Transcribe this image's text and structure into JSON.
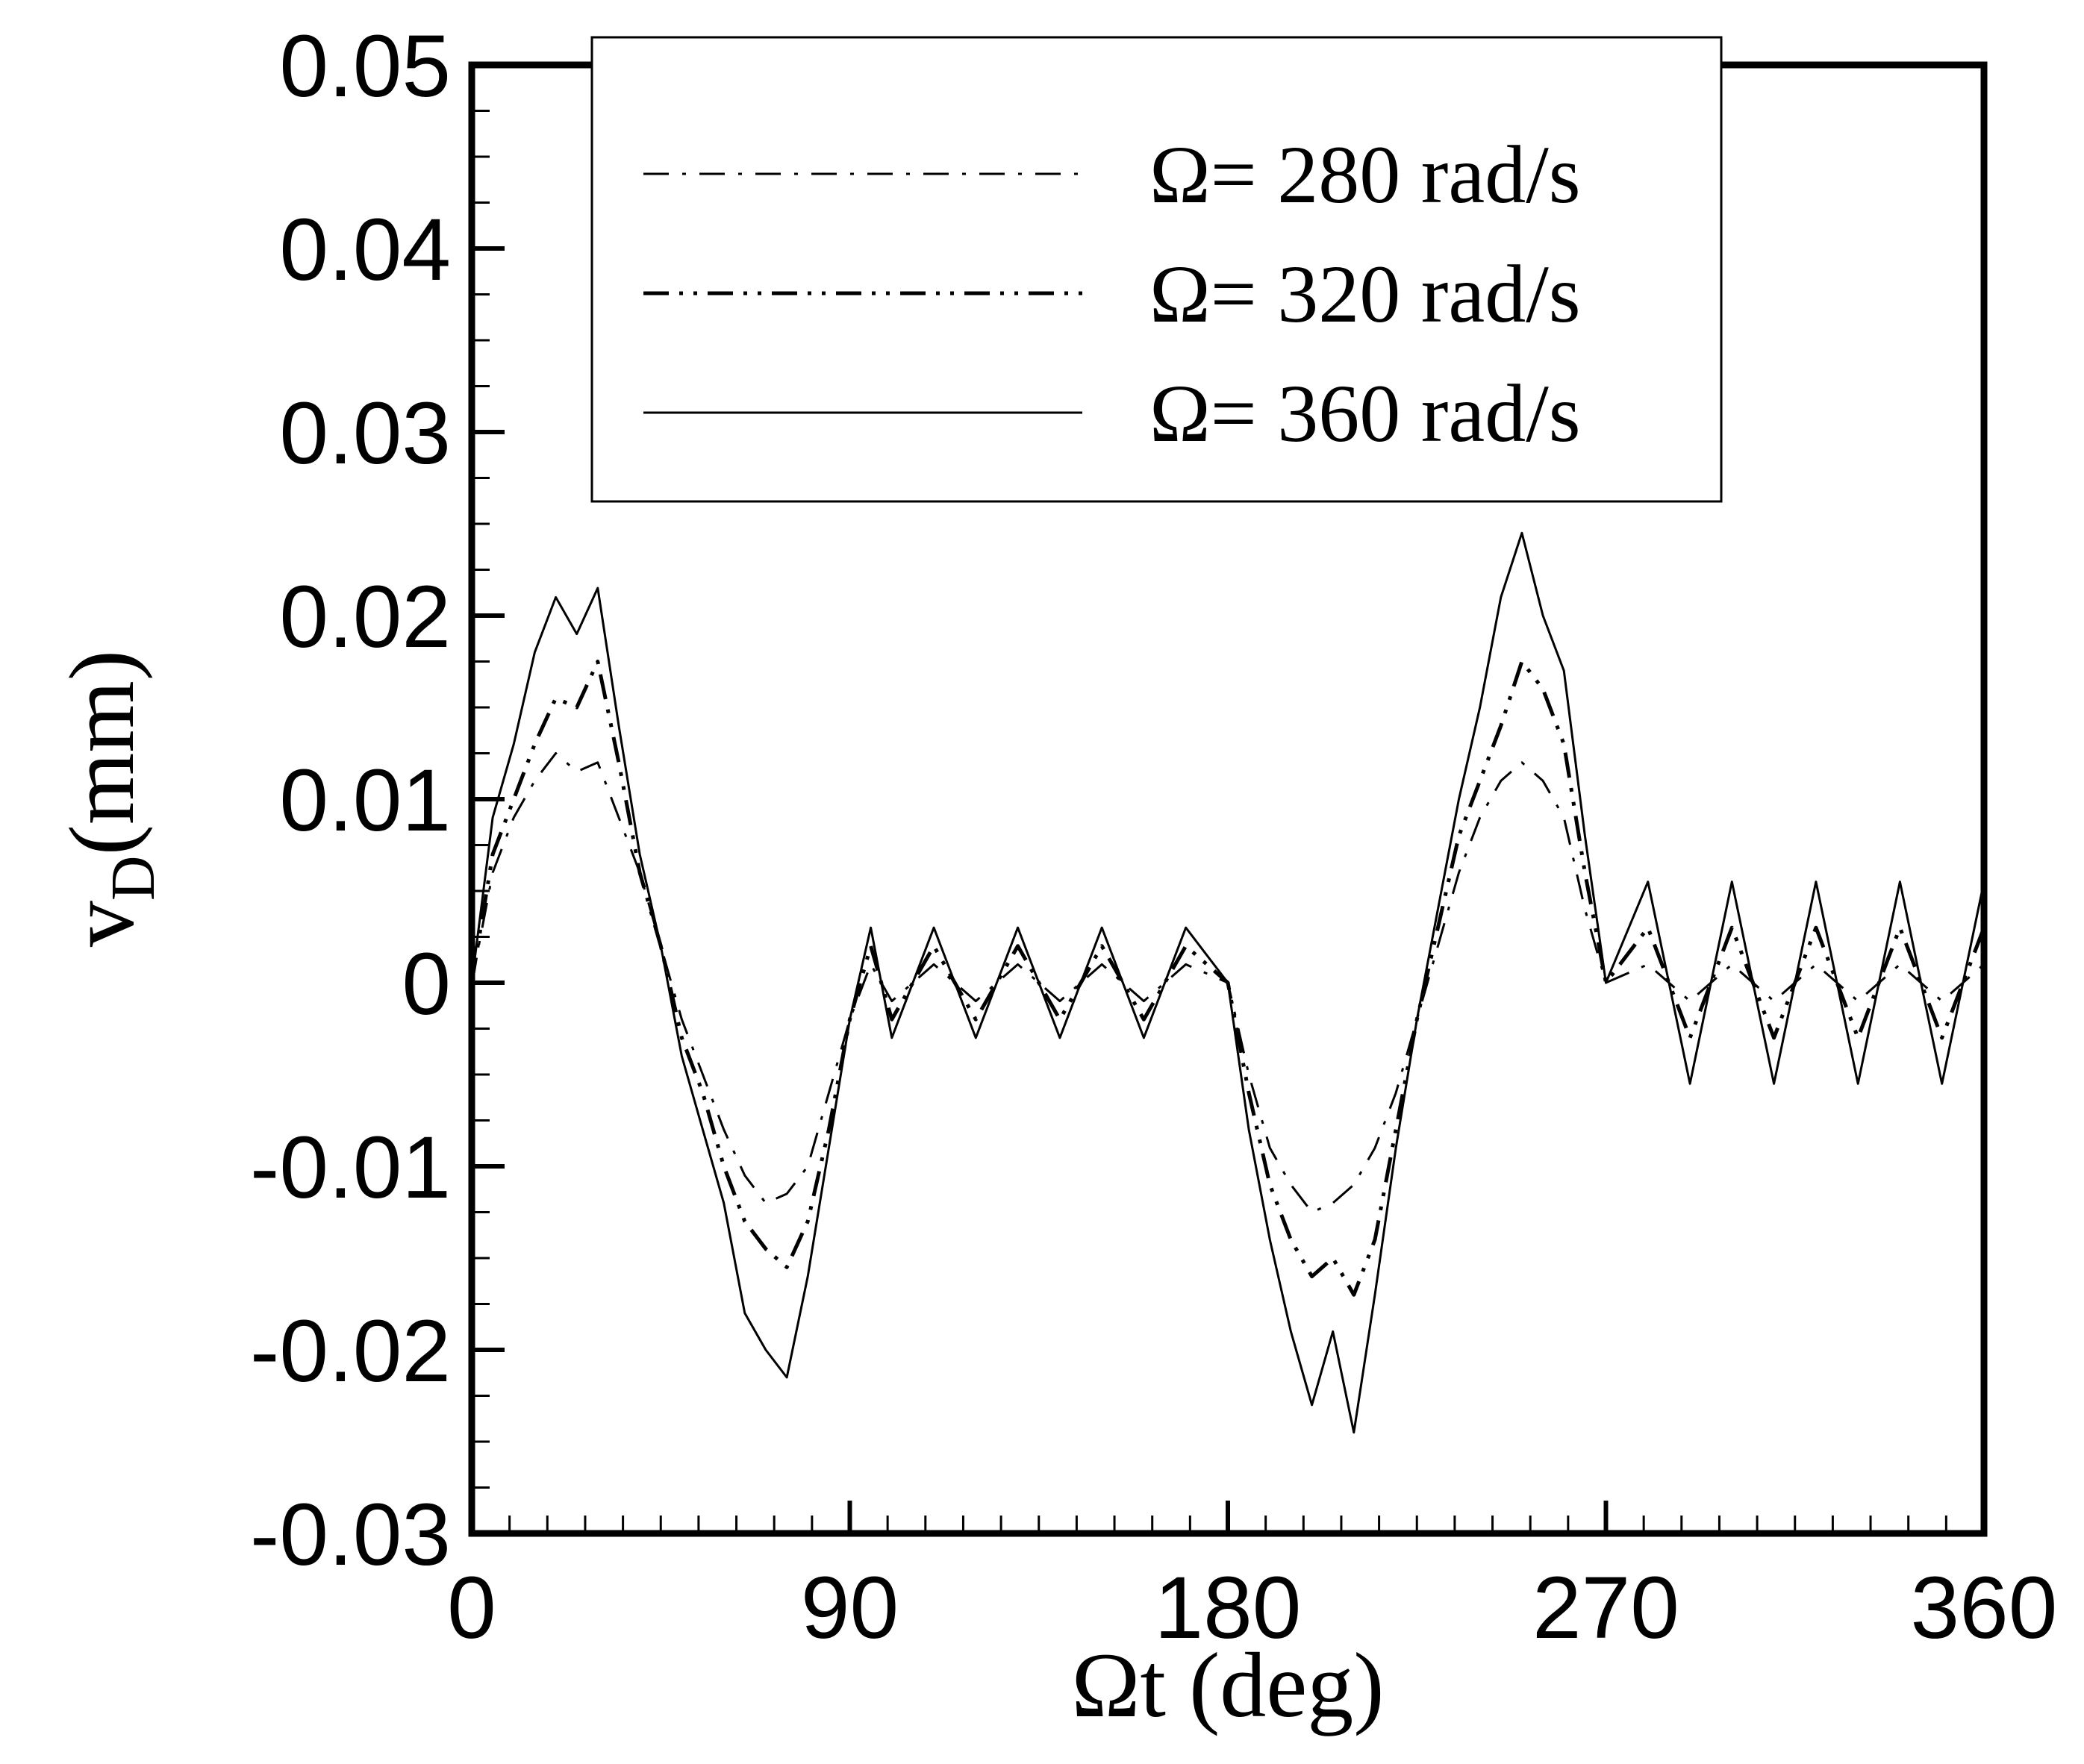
{
  "chart_data": {
    "type": "line",
    "xlabel": "Ωt (deg)",
    "ylabel_main": "v",
    "ylabel_sub": "D",
    "ylabel_unit": "(mm)",
    "xlim": [
      0,
      360
    ],
    "ylim": [
      -0.03,
      0.05
    ],
    "xticks": [
      0,
      90,
      180,
      270,
      360
    ],
    "xtick_labels": [
      "0",
      "90",
      "180",
      "270",
      "360"
    ],
    "yticks": [
      -0.03,
      -0.02,
      -0.01,
      0,
      0.01,
      0.02,
      0.03,
      0.04,
      0.05
    ],
    "ytick_labels": [
      "-0.03",
      "-0.02",
      "-0.01",
      "0",
      "0.01",
      "0.02",
      "0.03",
      "0.04",
      "0.05"
    ],
    "grid": false,
    "legend_position": "top",
    "series": [
      {
        "name": "Ω= 280 rad/s",
        "style": "dash-dot",
        "x": [
          0,
          5,
          10,
          15,
          20,
          25,
          30,
          35,
          40,
          45,
          50,
          55,
          60,
          65,
          70,
          75,
          80,
          85,
          90,
          95,
          100,
          110,
          120,
          130,
          140,
          150,
          160,
          170,
          180,
          185,
          190,
          195,
          200,
          205,
          210,
          215,
          220,
          225,
          230,
          235,
          240,
          245,
          250,
          255,
          260,
          265,
          270,
          280,
          290,
          300,
          310,
          320,
          330,
          340,
          350,
          360
        ],
        "y": [
          0,
          0.006,
          0.009,
          0.011,
          0.0125,
          0.0115,
          0.012,
          0.009,
          0.006,
          0.002,
          -0.002,
          -0.005,
          -0.008,
          -0.0105,
          -0.012,
          -0.0115,
          -0.01,
          -0.006,
          -0.002,
          0.001,
          -0.001,
          0.001,
          -0.001,
          0.001,
          -0.001,
          0.001,
          -0.001,
          0.001,
          0.0,
          -0.005,
          -0.009,
          -0.011,
          -0.0125,
          -0.012,
          -0.011,
          -0.009,
          -0.006,
          -0.002,
          0.002,
          0.006,
          0.009,
          0.011,
          0.012,
          0.011,
          0.009,
          0.004,
          0.0,
          0.001,
          -0.001,
          0.001,
          -0.001,
          0.001,
          -0.001,
          0.001,
          -0.001,
          0.001
        ]
      },
      {
        "name": "Ω= 320 rad/s",
        "style": "dash-dot-dot",
        "x": [
          0,
          5,
          10,
          15,
          20,
          25,
          30,
          35,
          40,
          45,
          50,
          55,
          60,
          65,
          70,
          75,
          80,
          85,
          90,
          95,
          100,
          110,
          120,
          130,
          140,
          150,
          160,
          170,
          180,
          185,
          190,
          195,
          200,
          205,
          210,
          215,
          220,
          225,
          230,
          235,
          240,
          245,
          250,
          255,
          260,
          265,
          270,
          280,
          290,
          300,
          310,
          320,
          330,
          340,
          350,
          360
        ],
        "y": [
          0,
          0.007,
          0.01,
          0.013,
          0.0155,
          0.015,
          0.0175,
          0.012,
          0.006,
          0.002,
          -0.003,
          -0.006,
          -0.01,
          -0.013,
          -0.0145,
          -0.0155,
          -0.013,
          -0.008,
          -0.002,
          0.002,
          -0.002,
          0.002,
          -0.002,
          0.002,
          -0.002,
          0.002,
          -0.002,
          0.002,
          0.0,
          -0.006,
          -0.011,
          -0.014,
          -0.016,
          -0.015,
          -0.017,
          -0.014,
          -0.008,
          -0.002,
          0.003,
          0.008,
          0.011,
          0.014,
          0.0175,
          0.016,
          0.013,
          0.006,
          0.0,
          0.003,
          -0.003,
          0.003,
          -0.003,
          0.003,
          -0.003,
          0.003,
          -0.003,
          0.003
        ]
      },
      {
        "name": "Ω= 360 rad/s",
        "style": "solid",
        "x": [
          0,
          5,
          10,
          15,
          20,
          25,
          30,
          35,
          40,
          45,
          50,
          55,
          60,
          65,
          70,
          75,
          80,
          85,
          90,
          95,
          100,
          110,
          120,
          130,
          140,
          150,
          160,
          170,
          180,
          185,
          190,
          195,
          200,
          205,
          210,
          215,
          220,
          225,
          230,
          235,
          240,
          245,
          250,
          255,
          260,
          265,
          270,
          280,
          290,
          300,
          310,
          320,
          330,
          340,
          350,
          360
        ],
        "y": [
          0,
          0.009,
          0.013,
          0.018,
          0.021,
          0.019,
          0.0215,
          0.014,
          0.007,
          0.002,
          -0.004,
          -0.008,
          -0.012,
          -0.018,
          -0.02,
          -0.0215,
          -0.016,
          -0.009,
          -0.002,
          0.003,
          -0.003,
          0.003,
          -0.003,
          0.003,
          -0.003,
          0.003,
          -0.003,
          0.003,
          0.0,
          -0.008,
          -0.014,
          -0.019,
          -0.023,
          -0.019,
          -0.0245,
          -0.017,
          -0.009,
          -0.002,
          0.004,
          0.01,
          0.015,
          0.021,
          0.0245,
          0.02,
          0.017,
          0.008,
          0.0,
          0.0055,
          -0.0055,
          0.0055,
          -0.0055,
          0.0055,
          -0.0055,
          0.0055,
          -0.0055,
          0.0055
        ]
      }
    ]
  }
}
